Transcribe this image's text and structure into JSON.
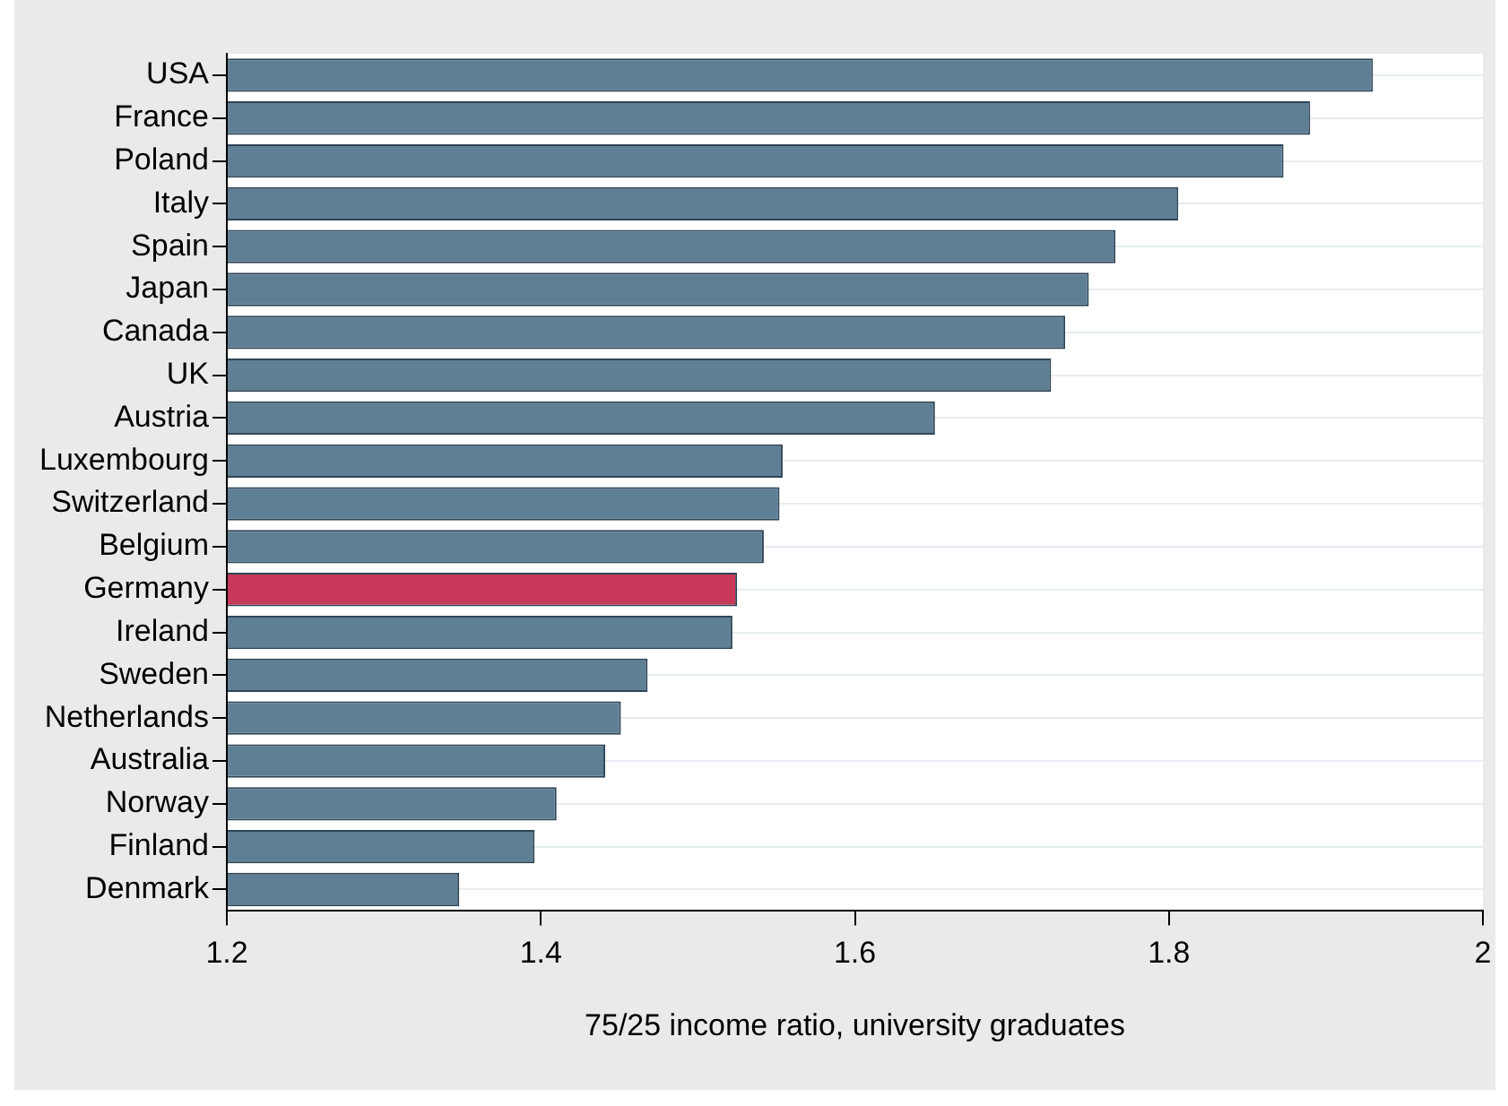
{
  "chart_data": {
    "type": "bar",
    "orientation": "horizontal",
    "xlabel": "75/25 income ratio, university graduates",
    "categories": [
      "USA",
      "France",
      "Poland",
      "Italy",
      "Spain",
      "Japan",
      "Canada",
      "UK",
      "Austria",
      "Luxembourg",
      "Switzerland",
      "Belgium",
      "Germany",
      "Ireland",
      "Sweden",
      "Netherlands",
      "Australia",
      "Norway",
      "Finland",
      "Denmark"
    ],
    "values": [
      1.93,
      1.89,
      1.873,
      1.806,
      1.766,
      1.749,
      1.734,
      1.725,
      1.651,
      1.554,
      1.552,
      1.542,
      1.525,
      1.522,
      1.468,
      1.451,
      1.441,
      1.41,
      1.396,
      1.348
    ],
    "colors": [
      "#5f7f94",
      "#5f7f94",
      "#5f7f94",
      "#5f7f94",
      "#5f7f94",
      "#5f7f94",
      "#5f7f94",
      "#5f7f94",
      "#5f7f94",
      "#5f7f94",
      "#5f7f94",
      "#5f7f94",
      "#c8385a",
      "#5f7f94",
      "#5f7f94",
      "#5f7f94",
      "#5f7f94",
      "#5f7f94",
      "#5f7f94",
      "#5f7f94"
    ],
    "xlim": [
      1.2,
      2
    ],
    "xticks": [
      1.2,
      1.4,
      1.6,
      1.8,
      2
    ],
    "grid": "y",
    "legend": false
  }
}
